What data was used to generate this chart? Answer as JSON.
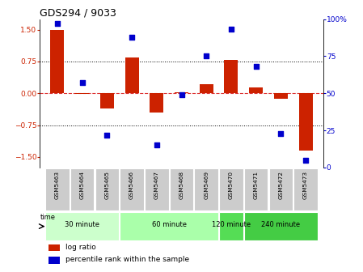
{
  "title": "GDS294 / 9033",
  "samples": [
    "GSM5463",
    "GSM5464",
    "GSM5465",
    "GSM5466",
    "GSM5467",
    "GSM5468",
    "GSM5469",
    "GSM5470",
    "GSM5471",
    "GSM5472",
    "GSM5473"
  ],
  "log_ratio": [
    1.5,
    -0.02,
    -0.35,
    0.85,
    -0.45,
    0.02,
    0.22,
    0.78,
    0.13,
    -0.13,
    -1.35
  ],
  "percentile": [
    97,
    57,
    22,
    88,
    15,
    49,
    75,
    93,
    68,
    23,
    5
  ],
  "groups": [
    {
      "label": "30 minute",
      "start": 0,
      "end": 2,
      "color": "#ccffcc"
    },
    {
      "label": "60 minute",
      "start": 3,
      "end": 6,
      "color": "#aaffaa"
    },
    {
      "label": "120 minute",
      "start": 7,
      "end": 7,
      "color": "#55dd55"
    },
    {
      "label": "240 minute",
      "start": 8,
      "end": 10,
      "color": "#44cc44"
    }
  ],
  "bar_color": "#cc2200",
  "dot_color": "#0000cc",
  "ylim_left": [
    -1.75,
    1.75
  ],
  "ylim_right": [
    0,
    100
  ],
  "yticks_left": [
    -1.5,
    -0.75,
    0,
    0.75,
    1.5
  ],
  "yticks_right": [
    0,
    25,
    50,
    75,
    100
  ],
  "hline0_color": "#dd3333",
  "hline0_style": "--",
  "hline_pm_color": "black",
  "hline_pm_style": ":",
  "sample_bg_color": "#cccccc",
  "time_label": "time",
  "legend_labels": [
    "log ratio",
    "percentile rank within the sample"
  ]
}
